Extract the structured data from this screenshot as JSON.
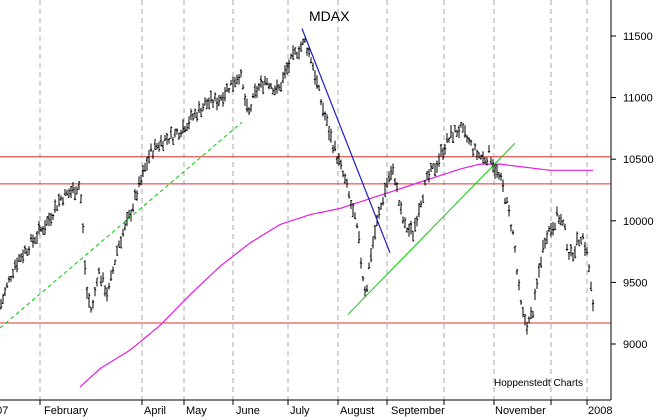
{
  "chart_data": {
    "type": "ohlc",
    "title": "MDAX",
    "credit": "Hoppenstedt Charts",
    "x_labels": [
      "007",
      "February",
      "April",
      "May",
      "June",
      "July",
      "August",
      "September",
      "November",
      "2008"
    ],
    "y_ticks": [
      9000,
      9500,
      10000,
      10500,
      11000,
      11500
    ],
    "ylim": [
      8700,
      11850
    ],
    "grid": "vertical dashed at month boundaries",
    "colors": {
      "bars": "#000000",
      "moving_average": "#e020e0",
      "horizontal_lines": "#e03030",
      "uptrend": "#00cc00",
      "downtrend": "#2020c0"
    },
    "price_waypoints": [
      [
        0,
        9300
      ],
      [
        15,
        9650
      ],
      [
        32,
        9830
      ],
      [
        48,
        10000
      ],
      [
        60,
        10180
      ],
      [
        75,
        10260
      ],
      [
        80,
        10300
      ],
      [
        84,
        9800
      ],
      [
        86,
        9450
      ],
      [
        92,
        9250
      ],
      [
        98,
        9600
      ],
      [
        108,
        9400
      ],
      [
        118,
        9800
      ],
      [
        128,
        10000
      ],
      [
        140,
        10300
      ],
      [
        150,
        10550
      ],
      [
        162,
        10650
      ],
      [
        175,
        10700
      ],
      [
        190,
        10820
      ],
      [
        205,
        10950
      ],
      [
        218,
        10980
      ],
      [
        230,
        11100
      ],
      [
        240,
        11200
      ],
      [
        248,
        10850
      ],
      [
        256,
        11050
      ],
      [
        266,
        11150
      ],
      [
        278,
        11050
      ],
      [
        288,
        11250
      ],
      [
        297,
        11380
      ],
      [
        305,
        11450
      ],
      [
        312,
        11300
      ],
      [
        320,
        11000
      ],
      [
        330,
        10700
      ],
      [
        338,
        10500
      ],
      [
        346,
        10300
      ],
      [
        352,
        10100
      ],
      [
        358,
        9900
      ],
      [
        362,
        9600
      ],
      [
        366,
        9400
      ],
      [
        370,
        9700
      ],
      [
        376,
        9950
      ],
      [
        382,
        10150
      ],
      [
        388,
        10350
      ],
      [
        394,
        10400
      ],
      [
        400,
        10100
      ],
      [
        405,
        9950
      ],
      [
        413,
        9900
      ],
      [
        420,
        10150
      ],
      [
        428,
        10350
      ],
      [
        436,
        10450
      ],
      [
        444,
        10600
      ],
      [
        452,
        10700
      ],
      [
        460,
        10750
      ],
      [
        468,
        10650
      ],
      [
        476,
        10550
      ],
      [
        484,
        10500
      ],
      [
        490,
        10550
      ],
      [
        496,
        10400
      ],
      [
        502,
        10300
      ],
      [
        508,
        10100
      ],
      [
        514,
        9850
      ],
      [
        518,
        9500
      ],
      [
        522,
        9250
      ],
      [
        528,
        9150
      ],
      [
        534,
        9300
      ],
      [
        540,
        9650
      ],
      [
        546,
        9900
      ],
      [
        552,
        9950
      ],
      [
        558,
        10050
      ],
      [
        564,
        9950
      ],
      [
        570,
        9700
      ],
      [
        576,
        9800
      ],
      [
        582,
        9900
      ],
      [
        588,
        9700
      ],
      [
        594,
        9200
      ]
    ],
    "moving_average_waypoints": [
      [
        80,
        8650
      ],
      [
        100,
        8800
      ],
      [
        130,
        8950
      ],
      [
        160,
        9150
      ],
      [
        190,
        9400
      ],
      [
        220,
        9630
      ],
      [
        250,
        9820
      ],
      [
        280,
        9970
      ],
      [
        310,
        10050
      ],
      [
        340,
        10100
      ],
      [
        370,
        10180
      ],
      [
        400,
        10260
      ],
      [
        430,
        10340
      ],
      [
        460,
        10420
      ],
      [
        480,
        10460
      ],
      [
        500,
        10460
      ],
      [
        520,
        10440
      ],
      [
        550,
        10410
      ],
      [
        570,
        10410
      ],
      [
        595,
        10410
      ]
    ],
    "horizontal_levels": [
      10520,
      10300,
      9170
    ],
    "uptrend_lines": [
      {
        "from": [
          0,
          9130
        ],
        "to": [
          242,
          10800
        ]
      },
      {
        "from": [
          348,
          9240
        ],
        "to": [
          515,
          10630
        ]
      }
    ],
    "downtrend_line": {
      "from": [
        302,
        11560
      ],
      "to": [
        390,
        9740
      ]
    }
  }
}
